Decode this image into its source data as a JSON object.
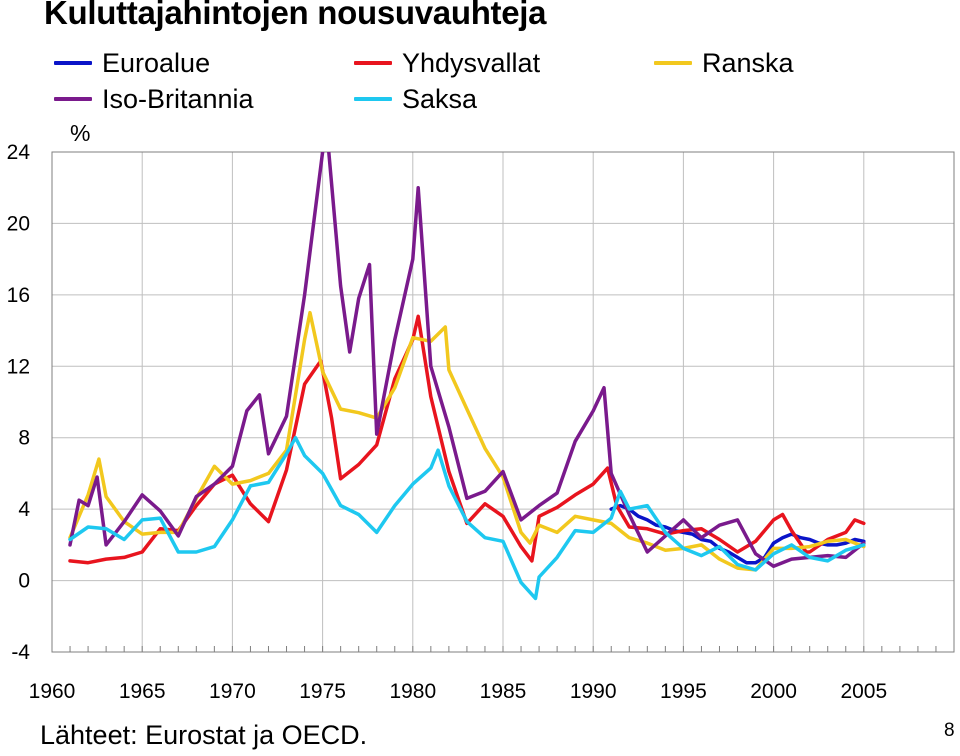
{
  "chart_data": {
    "type": "line",
    "title": "Kuluttajahintojen nousuvauhteja",
    "ylabel": "%",
    "source": "Lähteet: Eurostat ja OECD.",
    "page_number": "8",
    "xlim": [
      1960,
      2010
    ],
    "ylim": [
      -4,
      24
    ],
    "yticks": [
      "24",
      "20",
      "16",
      "12",
      "8",
      "4",
      "0",
      "-4"
    ],
    "xticks": [
      "1960",
      "1965",
      "1970",
      "1975",
      "1980",
      "1985",
      "1990",
      "1995",
      "2000",
      "2005"
    ],
    "grid": true,
    "legend_position": "top",
    "series": [
      {
        "name": "Euroalue",
        "color": "#0a14c8",
        "points": [
          [
            1991,
            4.0
          ],
          [
            1991.5,
            4.2
          ],
          [
            1992,
            4.0
          ],
          [
            1992.5,
            3.6
          ],
          [
            1993,
            3.4
          ],
          [
            1993.5,
            3.1
          ],
          [
            1994,
            3.0
          ],
          [
            1994.5,
            2.8
          ],
          [
            1995,
            2.7
          ],
          [
            1995.5,
            2.6
          ],
          [
            1996,
            2.3
          ],
          [
            1996.5,
            2.2
          ],
          [
            1997,
            1.8
          ],
          [
            1997.5,
            1.6
          ],
          [
            1998,
            1.3
          ],
          [
            1998.5,
            1.0
          ],
          [
            1999,
            1.0
          ],
          [
            1999.5,
            1.3
          ],
          [
            2000,
            2.1
          ],
          [
            2000.5,
            2.4
          ],
          [
            2001,
            2.6
          ],
          [
            2001.5,
            2.4
          ],
          [
            2002,
            2.3
          ],
          [
            2002.5,
            2.1
          ],
          [
            2003,
            2.0
          ],
          [
            2003.5,
            2.0
          ],
          [
            2004,
            2.1
          ],
          [
            2004.5,
            2.3
          ],
          [
            2005,
            2.2
          ]
        ]
      },
      {
        "name": "Yhdysvallat",
        "color": "#e8141e",
        "points": [
          [
            1961,
            1.1
          ],
          [
            1962,
            1.0
          ],
          [
            1963,
            1.2
          ],
          [
            1964,
            1.3
          ],
          [
            1965,
            1.6
          ],
          [
            1966,
            2.9
          ],
          [
            1967,
            2.8
          ],
          [
            1968,
            4.2
          ],
          [
            1969,
            5.4
          ],
          [
            1970,
            5.9
          ],
          [
            1971,
            4.3
          ],
          [
            1972,
            3.3
          ],
          [
            1973,
            6.2
          ],
          [
            1974,
            11.0
          ],
          [
            1974.9,
            12.3
          ],
          [
            1975.5,
            9.1
          ],
          [
            1976,
            5.7
          ],
          [
            1977,
            6.5
          ],
          [
            1978,
            7.6
          ],
          [
            1979,
            11.3
          ],
          [
            1980,
            13.5
          ],
          [
            1980.3,
            14.8
          ],
          [
            1981,
            10.3
          ],
          [
            1982,
            6.1
          ],
          [
            1983,
            3.2
          ],
          [
            1984,
            4.3
          ],
          [
            1985,
            3.6
          ],
          [
            1986,
            1.9
          ],
          [
            1986.6,
            1.1
          ],
          [
            1987,
            3.6
          ],
          [
            1988,
            4.1
          ],
          [
            1989,
            4.8
          ],
          [
            1990,
            5.4
          ],
          [
            1990.8,
            6.3
          ],
          [
            1991.3,
            4.2
          ],
          [
            1992,
            3.0
          ],
          [
            1993,
            2.9
          ],
          [
            1994,
            2.6
          ],
          [
            1995,
            2.8
          ],
          [
            1996,
            2.9
          ],
          [
            1997,
            2.3
          ],
          [
            1998,
            1.6
          ],
          [
            1999,
            2.2
          ],
          [
            2000,
            3.4
          ],
          [
            2000.5,
            3.7
          ],
          [
            2001,
            2.8
          ],
          [
            2001.8,
            1.6
          ],
          [
            2002,
            1.6
          ],
          [
            2003,
            2.3
          ],
          [
            2004,
            2.7
          ],
          [
            2004.5,
            3.4
          ],
          [
            2005,
            3.2
          ]
        ]
      },
      {
        "name": "Ranska",
        "color": "#f2c81e",
        "points": [
          [
            1961,
            2.4
          ],
          [
            1962,
            4.8
          ],
          [
            1962.6,
            6.8
          ],
          [
            1963,
            4.7
          ],
          [
            1964,
            3.3
          ],
          [
            1965,
            2.6
          ],
          [
            1966,
            2.7
          ],
          [
            1967,
            2.7
          ],
          [
            1968,
            4.6
          ],
          [
            1969,
            6.4
          ],
          [
            1970,
            5.4
          ],
          [
            1971,
            5.6
          ],
          [
            1972,
            6.0
          ],
          [
            1973,
            7.3
          ],
          [
            1974,
            13.5
          ],
          [
            1974.3,
            15.0
          ],
          [
            1975,
            11.7
          ],
          [
            1976,
            9.6
          ],
          [
            1977,
            9.4
          ],
          [
            1978,
            9.1
          ],
          [
            1979,
            10.8
          ],
          [
            1980,
            13.6
          ],
          [
            1981,
            13.4
          ],
          [
            1981.8,
            14.2
          ],
          [
            1982,
            11.8
          ],
          [
            1983,
            9.6
          ],
          [
            1984,
            7.4
          ],
          [
            1985,
            5.8
          ],
          [
            1986,
            2.7
          ],
          [
            1986.5,
            2.1
          ],
          [
            1987,
            3.1
          ],
          [
            1988,
            2.7
          ],
          [
            1989,
            3.6
          ],
          [
            1990,
            3.4
          ],
          [
            1991,
            3.2
          ],
          [
            1992,
            2.4
          ],
          [
            1993,
            2.1
          ],
          [
            1994,
            1.7
          ],
          [
            1995,
            1.8
          ],
          [
            1996,
            2.0
          ],
          [
            1997,
            1.2
          ],
          [
            1998,
            0.7
          ],
          [
            1999,
            0.6
          ],
          [
            2000,
            1.8
          ],
          [
            2001,
            1.8
          ],
          [
            2002,
            1.9
          ],
          [
            2003,
            2.2
          ],
          [
            2004,
            2.3
          ],
          [
            2005,
            1.9
          ]
        ]
      },
      {
        "name": "Iso-Britannia",
        "color": "#7a1a8c",
        "points": [
          [
            1961,
            2.0
          ],
          [
            1961.5,
            4.5
          ],
          [
            1962,
            4.2
          ],
          [
            1962.5,
            5.8
          ],
          [
            1963,
            2.0
          ],
          [
            1964,
            3.3
          ],
          [
            1965,
            4.8
          ],
          [
            1966,
            3.9
          ],
          [
            1967,
            2.5
          ],
          [
            1968,
            4.7
          ],
          [
            1969,
            5.4
          ],
          [
            1970,
            6.4
          ],
          [
            1970.8,
            9.5
          ],
          [
            1971.5,
            10.4
          ],
          [
            1972,
            7.1
          ],
          [
            1973,
            9.2
          ],
          [
            1974,
            16.0
          ],
          [
            1975,
            24.0
          ],
          [
            1975.3,
            24.5
          ],
          [
            1976,
            16.5
          ],
          [
            1976.5,
            12.8
          ],
          [
            1977,
            15.8
          ],
          [
            1977.6,
            17.7
          ],
          [
            1978,
            8.2
          ],
          [
            1979,
            13.5
          ],
          [
            1980,
            18.0
          ],
          [
            1980.3,
            22.0
          ],
          [
            1981,
            12.0
          ],
          [
            1982,
            8.6
          ],
          [
            1983,
            4.6
          ],
          [
            1984,
            5.0
          ],
          [
            1985,
            6.1
          ],
          [
            1986,
            3.4
          ],
          [
            1987,
            4.2
          ],
          [
            1988,
            4.9
          ],
          [
            1989,
            7.8
          ],
          [
            1990,
            9.5
          ],
          [
            1990.6,
            10.8
          ],
          [
            1991,
            6.0
          ],
          [
            1992,
            3.7
          ],
          [
            1993,
            1.6
          ],
          [
            1994,
            2.5
          ],
          [
            1995,
            3.4
          ],
          [
            1996,
            2.4
          ],
          [
            1997,
            3.1
          ],
          [
            1998,
            3.4
          ],
          [
            1999,
            1.5
          ],
          [
            2000,
            0.8
          ],
          [
            2001,
            1.2
          ],
          [
            2002,
            1.3
          ],
          [
            2003,
            1.4
          ],
          [
            2004,
            1.3
          ],
          [
            2005,
            2.1
          ]
        ]
      },
      {
        "name": "Saksa",
        "color": "#1ec8f0",
        "points": [
          [
            1961,
            2.3
          ],
          [
            1962,
            3.0
          ],
          [
            1963,
            2.9
          ],
          [
            1964,
            2.3
          ],
          [
            1965,
            3.4
          ],
          [
            1966,
            3.5
          ],
          [
            1967,
            1.6
          ],
          [
            1968,
            1.6
          ],
          [
            1969,
            1.9
          ],
          [
            1970,
            3.4
          ],
          [
            1971,
            5.3
          ],
          [
            1972,
            5.5
          ],
          [
            1973,
            7.1
          ],
          [
            1973.5,
            8.0
          ],
          [
            1974,
            7.0
          ],
          [
            1975,
            6.0
          ],
          [
            1976,
            4.2
          ],
          [
            1977,
            3.7
          ],
          [
            1978,
            2.7
          ],
          [
            1979,
            4.2
          ],
          [
            1980,
            5.4
          ],
          [
            1981,
            6.3
          ],
          [
            1981.4,
            7.3
          ],
          [
            1982,
            5.3
          ],
          [
            1983,
            3.3
          ],
          [
            1984,
            2.4
          ],
          [
            1985,
            2.2
          ],
          [
            1986,
            -0.1
          ],
          [
            1986.8,
            -1.0
          ],
          [
            1987,
            0.2
          ],
          [
            1988,
            1.3
          ],
          [
            1989,
            2.8
          ],
          [
            1990,
            2.7
          ],
          [
            1991,
            3.5
          ],
          [
            1991.5,
            5.0
          ],
          [
            1992,
            4.0
          ],
          [
            1993,
            4.2
          ],
          [
            1994,
            2.7
          ],
          [
            1995,
            1.8
          ],
          [
            1996,
            1.4
          ],
          [
            1997,
            1.9
          ],
          [
            1998,
            0.9
          ],
          [
            1999,
            0.6
          ],
          [
            2000,
            1.5
          ],
          [
            2001,
            2.0
          ],
          [
            2002,
            1.3
          ],
          [
            2003,
            1.1
          ],
          [
            2004,
            1.7
          ],
          [
            2005,
            2.0
          ]
        ]
      }
    ]
  }
}
